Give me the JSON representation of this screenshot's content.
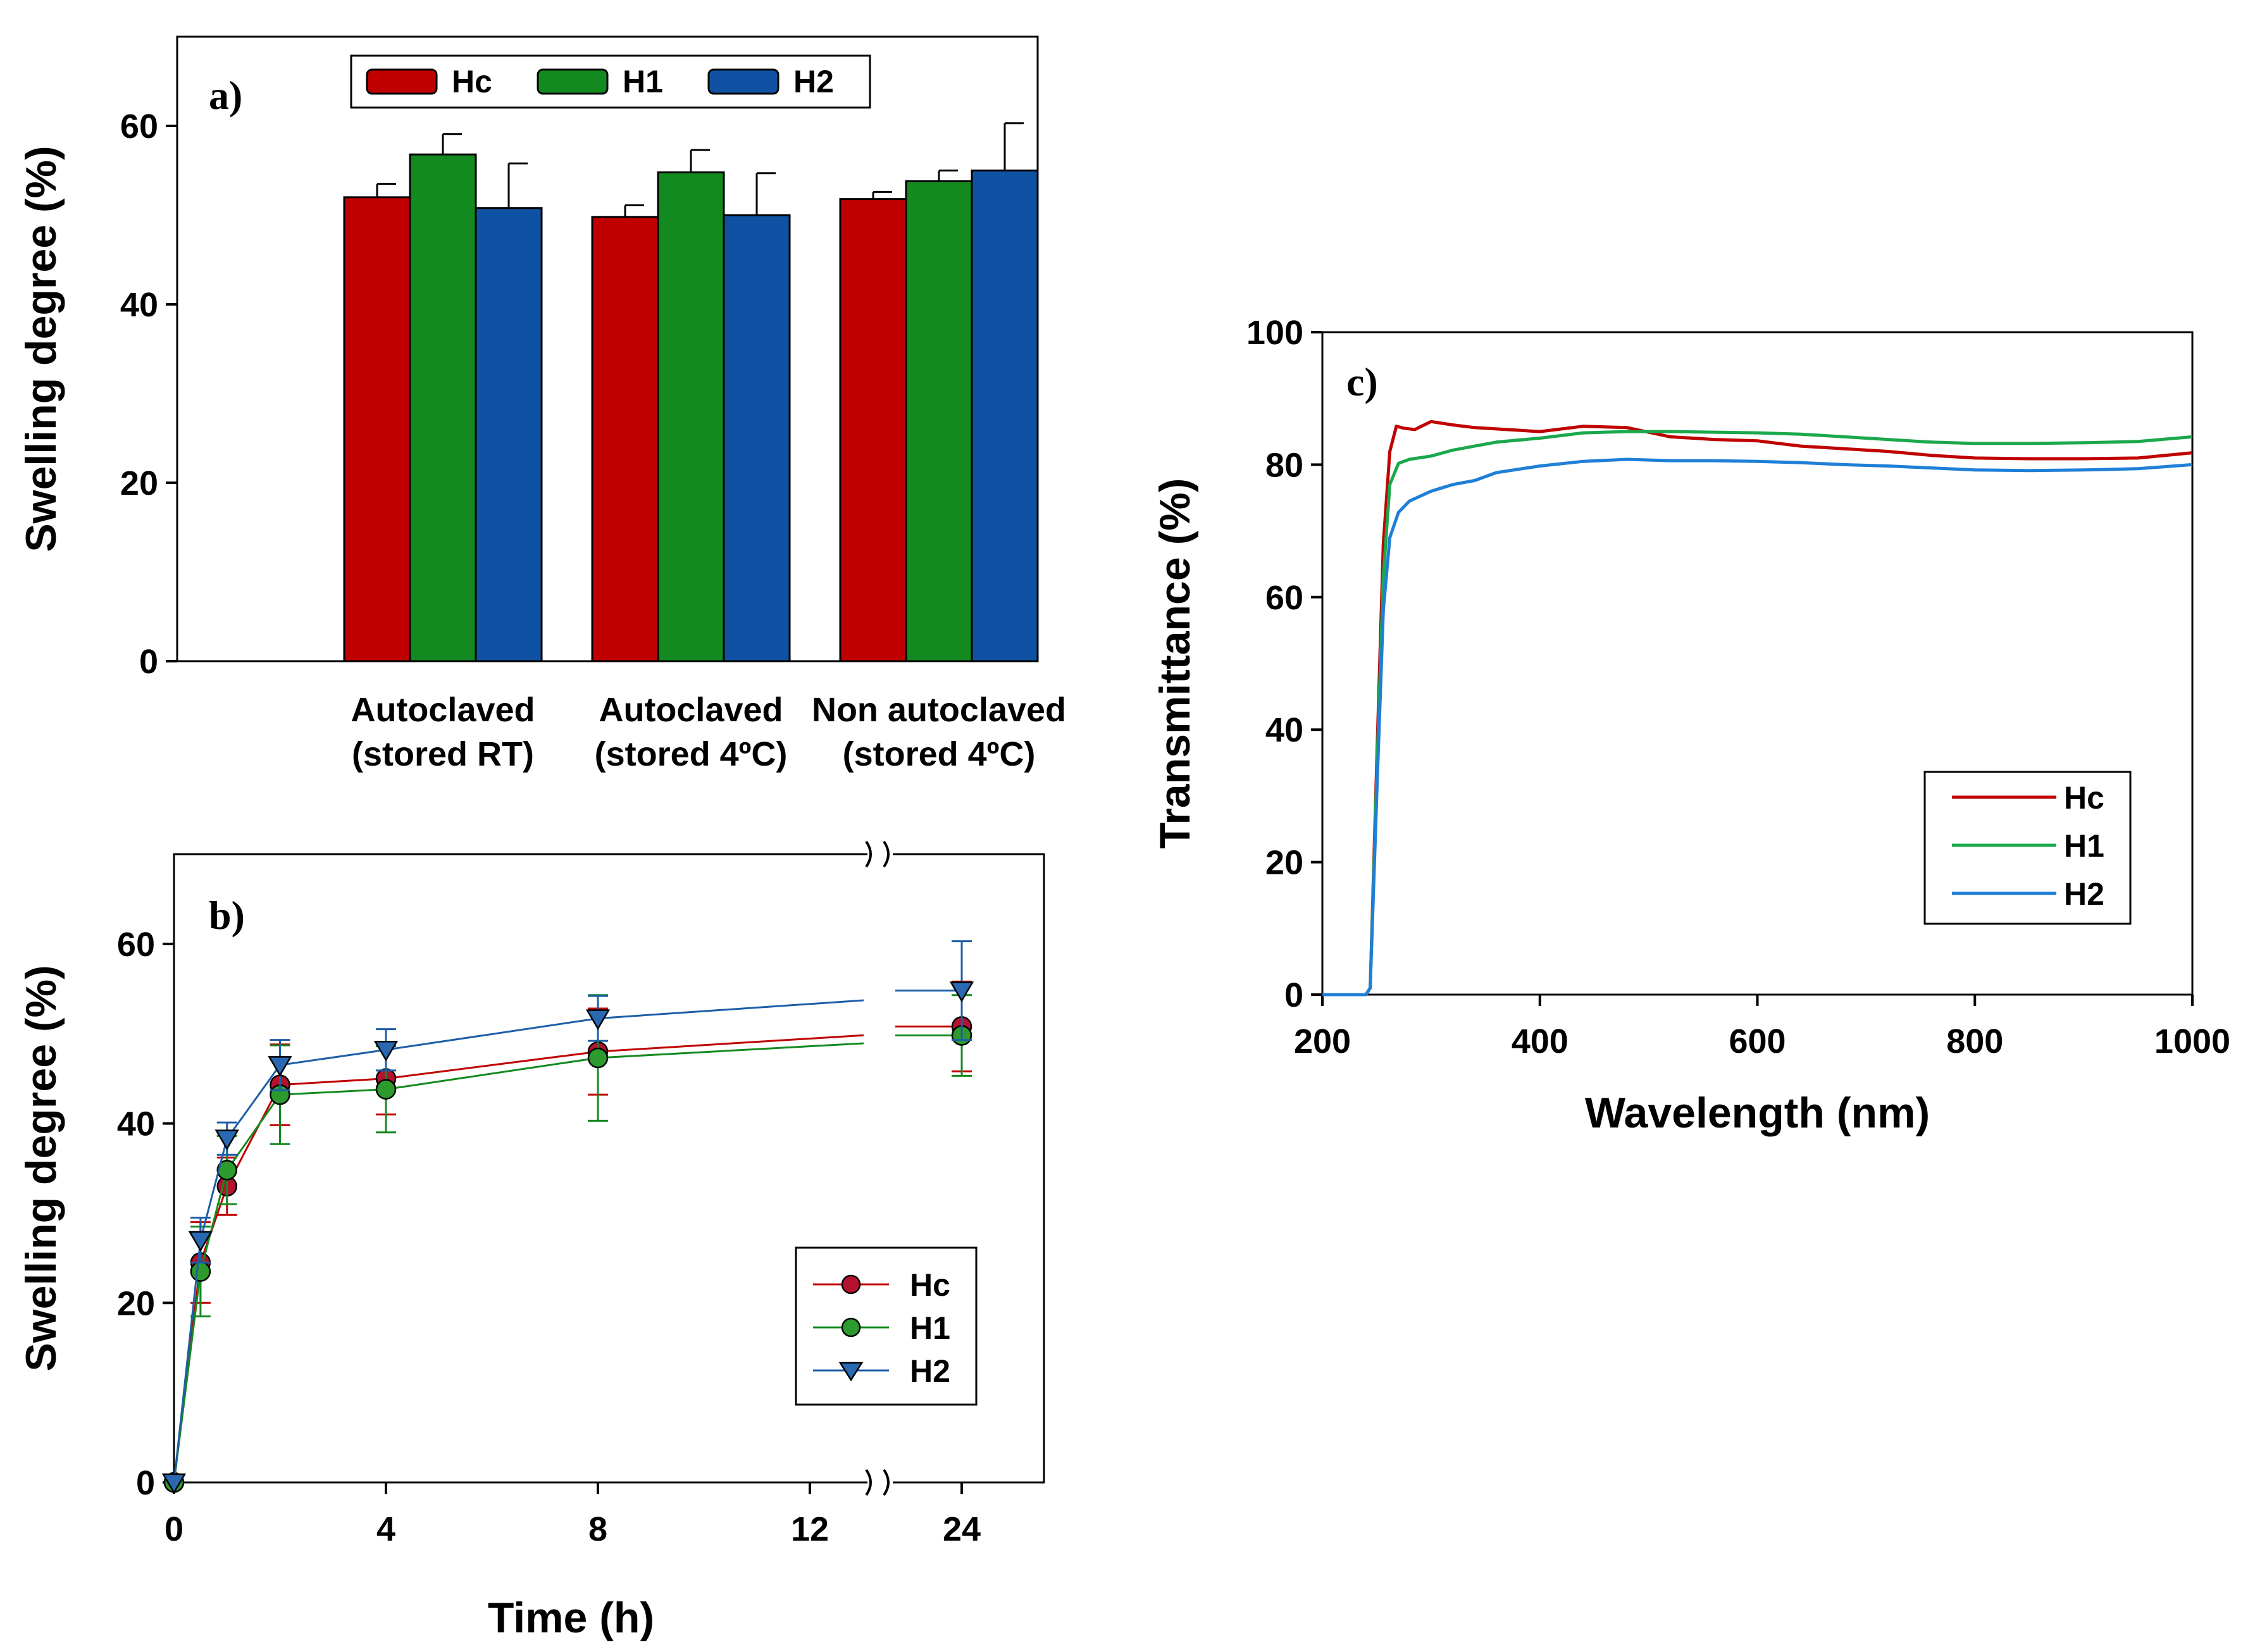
{
  "chart_data": [
    {
      "panel": "a)",
      "type": "bar",
      "title": "",
      "xlabel": "",
      "ylabel": "Swelling degree (%)",
      "ylim": [
        0,
        70
      ],
      "yticks": [
        0,
        20,
        40,
        60
      ],
      "categories": [
        [
          "Autoclaved",
          "(stored RT)"
        ],
        [
          "Autoclaved",
          "(stored 4ºC)"
        ],
        [
          "Non autoclaved",
          "(stored 4ºC)"
        ]
      ],
      "series": [
        {
          "name": "Hc",
          "color": "#c00000",
          "values": [
            52.0,
            49.8,
            51.8
          ],
          "errors": [
            1.5,
            1.3,
            0.8
          ]
        },
        {
          "name": "H1",
          "color": "#138a1f",
          "values": [
            56.8,
            54.8,
            53.8
          ],
          "errors": [
            2.3,
            2.5,
            1.2
          ]
        },
        {
          "name": "H2",
          "color": "#0f52a3",
          "values": [
            50.8,
            50.0,
            55.0
          ],
          "errors": [
            5.0,
            4.7,
            5.3
          ]
        }
      ],
      "legend": "top-center"
    },
    {
      "panel": "b)",
      "type": "line",
      "title": "",
      "xlabel": "Time (h)",
      "ylabel": "Swelling degree (%)",
      "ylim": [
        0,
        70
      ],
      "yticks": [
        0,
        20,
        40,
        60
      ],
      "xticks": [
        "0",
        "4",
        "8",
        "12",
        "24"
      ],
      "x_axis_break": "between 12 and 24",
      "x": [
        0,
        0.5,
        1,
        2,
        4,
        8,
        24
      ],
      "series": [
        {
          "name": "Hc",
          "color": "#c00000",
          "marker": "circle",
          "fill": "#b5122f",
          "values": [
            0,
            24.5,
            33.0,
            44.3,
            45.0,
            48.0,
            50.8
          ],
          "errors": [
            0,
            4.5,
            3.2,
            4.5,
            4.0,
            4.8,
            5.0
          ]
        },
        {
          "name": "H1",
          "color": "#138a1f",
          "marker": "circle",
          "fill": "#2d9a2d",
          "values": [
            0,
            23.5,
            34.8,
            43.2,
            43.8,
            47.3,
            49.8
          ],
          "errors": [
            0,
            5.0,
            3.8,
            5.5,
            4.8,
            7.0,
            4.5
          ]
        },
        {
          "name": "H2",
          "color": "#1e5ea8",
          "marker": "triangle-down",
          "fill": "#2a68b2",
          "values": [
            0,
            27.0,
            38.3,
            46.5,
            48.2,
            51.7,
            54.8
          ],
          "errors": [
            0,
            2.5,
            1.8,
            2.8,
            2.3,
            2.5,
            5.5
          ]
        }
      ],
      "legend": "bottom-right"
    },
    {
      "panel": "c)",
      "type": "line",
      "title": "",
      "xlabel": "Wavelength (nm)",
      "ylabel": "Transmittance  (%)",
      "xlim": [
        200,
        1000
      ],
      "ylim": [
        0,
        100
      ],
      "xticks": [
        200,
        400,
        600,
        800,
        1000
      ],
      "yticks": [
        0,
        20,
        40,
        60,
        80,
        100
      ],
      "series": [
        {
          "name": "Hc",
          "color": "#c00000",
          "x": [
            200,
            240,
            244,
            250,
            256,
            262,
            268,
            275,
            285,
            300,
            320,
            340,
            360,
            400,
            440,
            480,
            520,
            560,
            600,
            640,
            680,
            720,
            760,
            800,
            850,
            900,
            950,
            1000
          ],
          "values": [
            0,
            0,
            1,
            35,
            68,
            82,
            85.8,
            85.5,
            85.3,
            86.5,
            86.0,
            85.6,
            85.4,
            85.0,
            85.8,
            85.6,
            84.2,
            83.8,
            83.6,
            82.8,
            82.4,
            82.0,
            81.4,
            81.0,
            80.9,
            80.9,
            81.0,
            81.8
          ]
        },
        {
          "name": "H1",
          "color": "#1ba84c",
          "x": [
            200,
            240,
            244,
            250,
            256,
            262,
            270,
            280,
            300,
            320,
            340,
            360,
            400,
            440,
            480,
            520,
            560,
            600,
            640,
            680,
            720,
            760,
            800,
            850,
            900,
            950,
            1000
          ],
          "values": [
            0,
            0,
            1,
            33,
            63,
            77,
            80.2,
            80.8,
            81.3,
            82.2,
            82.8,
            83.4,
            84.0,
            84.8,
            85.0,
            85.0,
            84.9,
            84.8,
            84.6,
            84.2,
            83.8,
            83.4,
            83.2,
            83.2,
            83.3,
            83.5,
            84.2
          ]
        },
        {
          "name": "H2",
          "color": "#1f7fd6",
          "x": [
            200,
            240,
            244,
            250,
            256,
            262,
            270,
            280,
            300,
            320,
            340,
            360,
            400,
            440,
            480,
            520,
            560,
            600,
            640,
            680,
            720,
            760,
            800,
            850,
            900,
            950,
            1000
          ],
          "values": [
            0,
            0,
            1,
            30,
            58,
            69,
            72.8,
            74.5,
            76.0,
            77.0,
            77.6,
            78.8,
            79.8,
            80.5,
            80.8,
            80.6,
            80.6,
            80.5,
            80.3,
            80.0,
            79.8,
            79.5,
            79.2,
            79.1,
            79.2,
            79.4,
            80.0
          ]
        }
      ],
      "legend": "center-left"
    }
  ]
}
